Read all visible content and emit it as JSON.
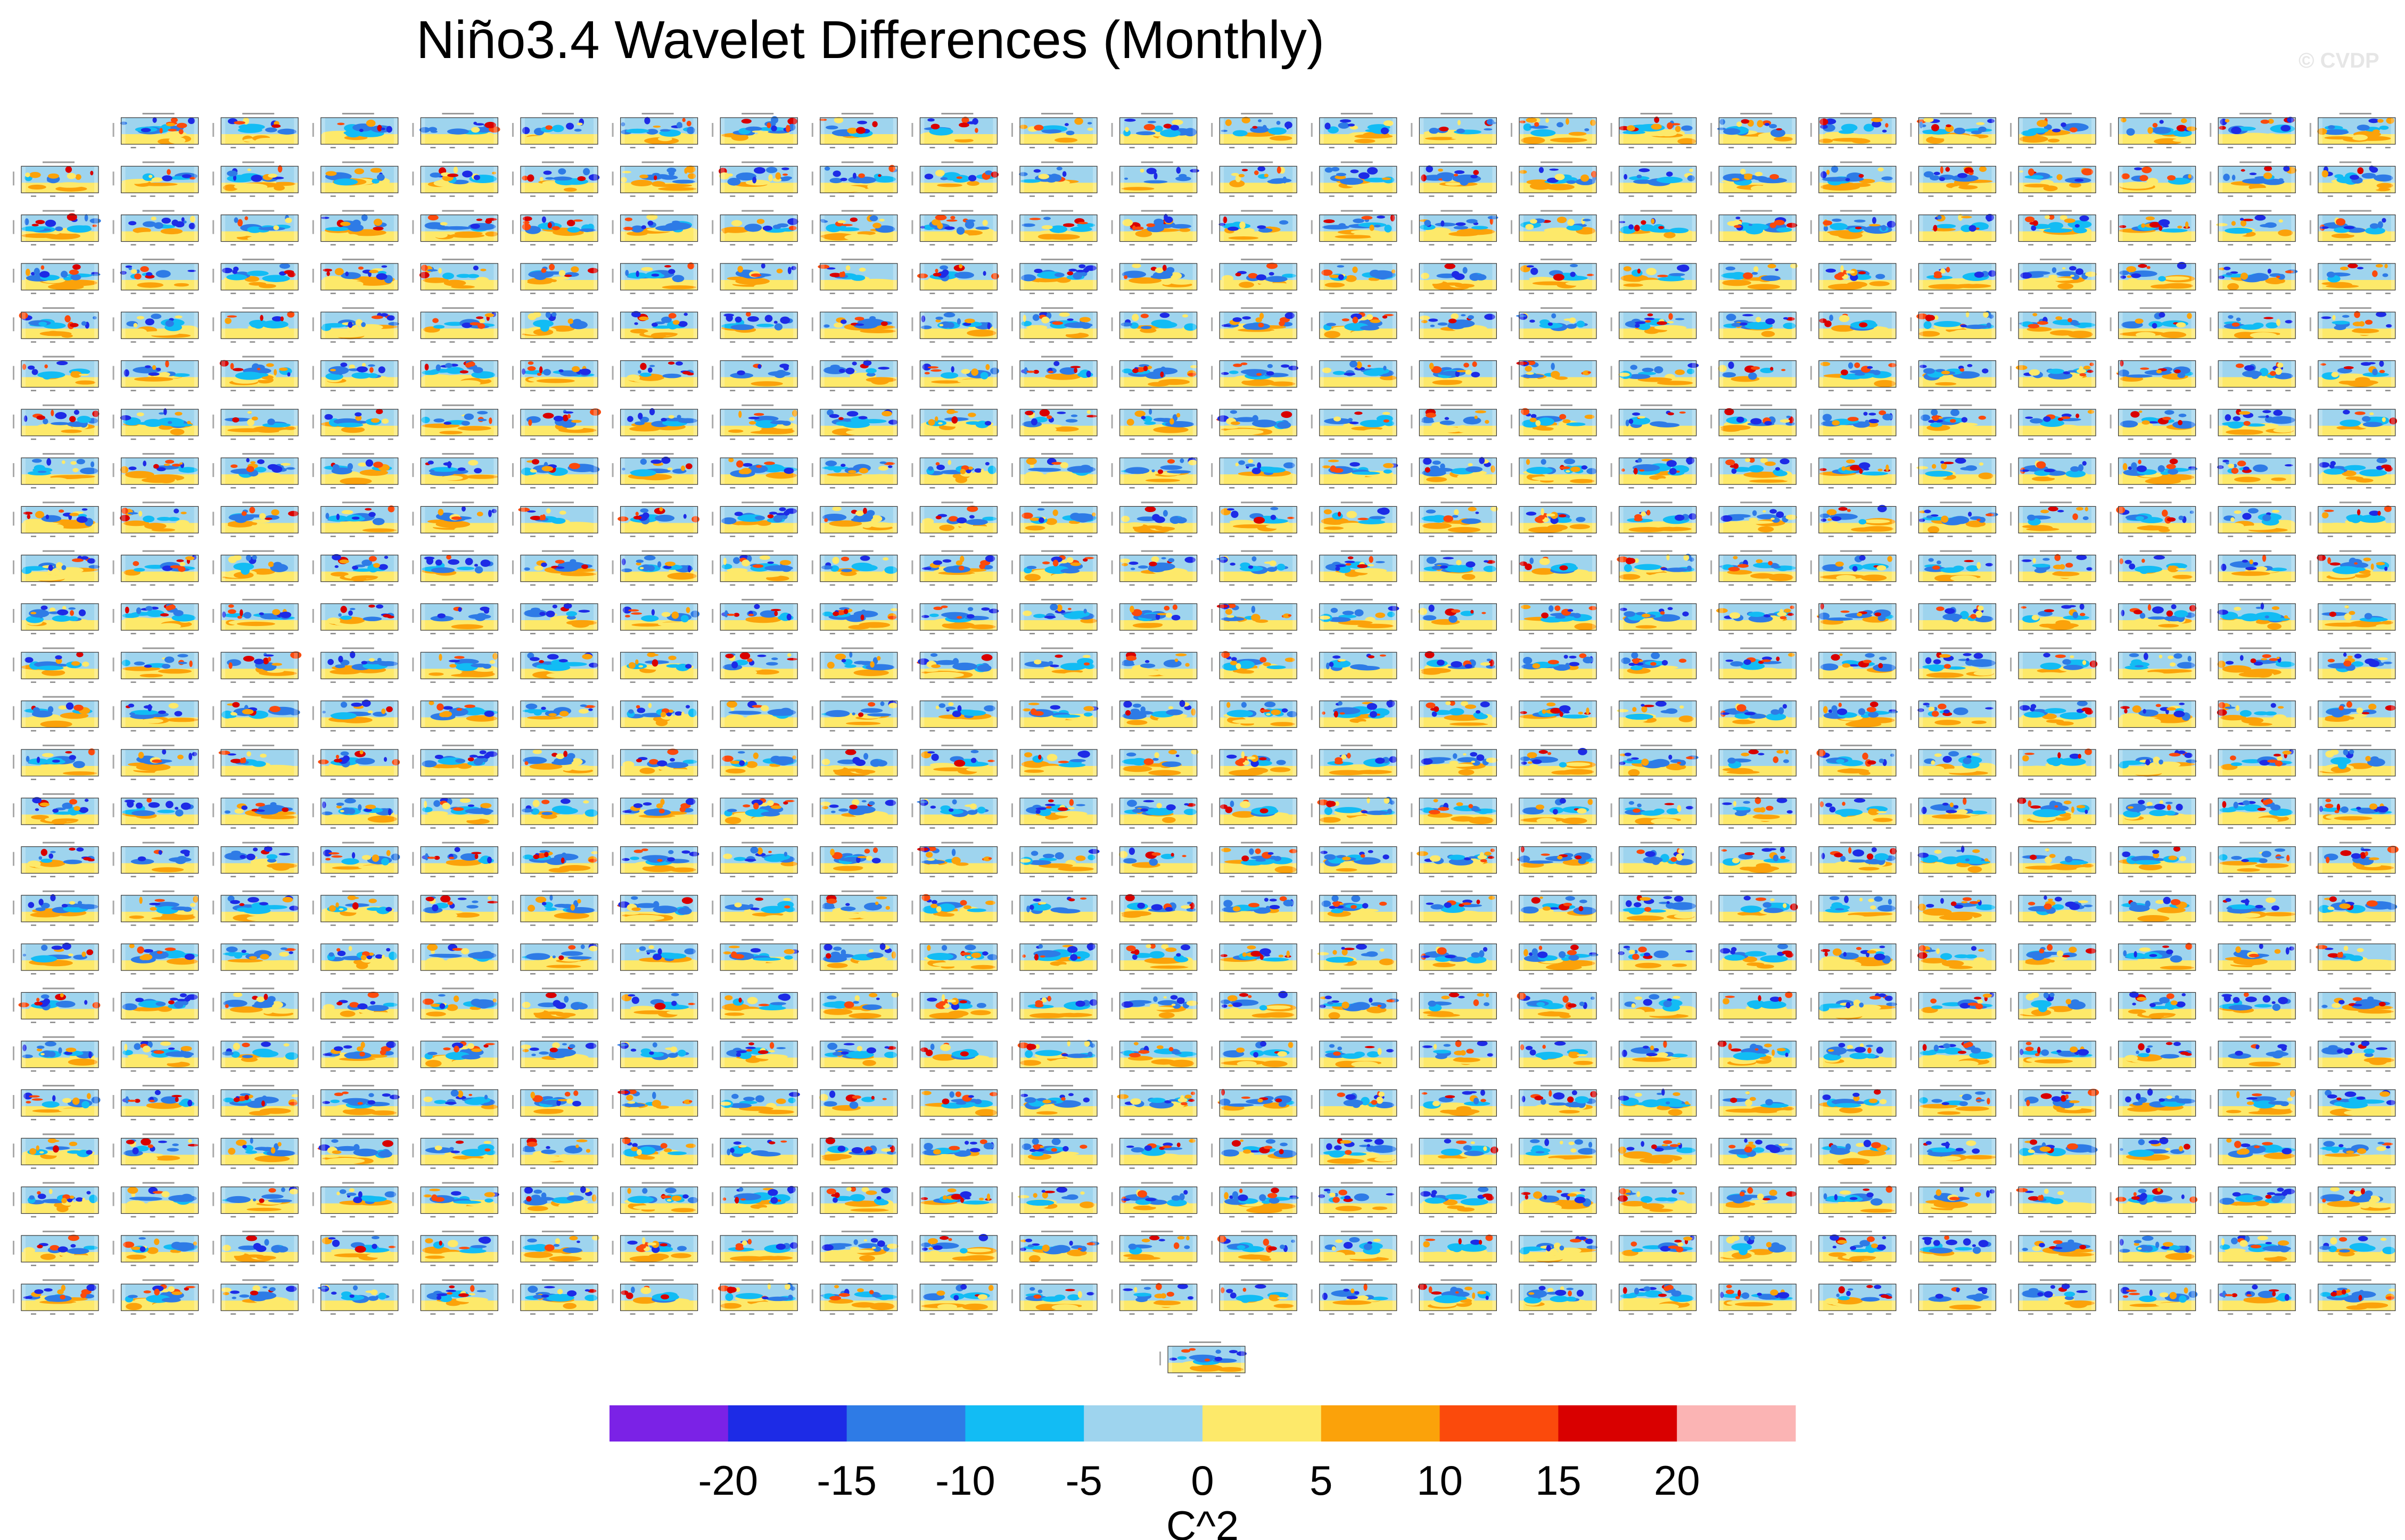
{
  "title": "Niño3.4 Wavelet Differences (Monthly)",
  "watermark": "© CVDP",
  "chart_data": {
    "type": "heatmap",
    "title": "Niño3.4 Wavelet Differences (Monthly)",
    "description_layout": "grid of small wavelet-power difference panels",
    "panel_grid": {
      "rows": 25,
      "columns": 24,
      "first_row_columns": 23,
      "extra_bottom_panels": 1
    },
    "colorbar": {
      "units": "C^2",
      "levels": [
        -20,
        -15,
        -10,
        -5,
        0,
        5,
        10,
        15,
        20
      ],
      "tick_labels": [
        "-20",
        "-15",
        "-10",
        "-5",
        "0",
        "5",
        "10",
        "15",
        "20"
      ],
      "colors": [
        "#7b22e6",
        "#1d2be6",
        "#2e7be6",
        "#12bcf4",
        "#9ed4ee",
        "#fde96a",
        "#fba20a",
        "#fb4a0c",
        "#d90000",
        "#fbb4b4"
      ]
    }
  }
}
